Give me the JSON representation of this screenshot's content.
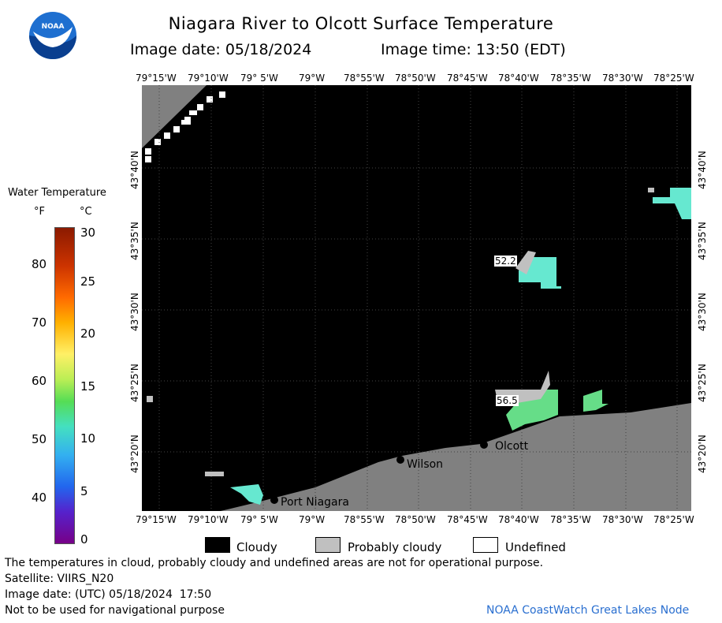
{
  "header": {
    "title": "Niagara River to Olcott Surface Temperature",
    "image_date": "Image date: 05/18/2024",
    "image_time": "Image time: 13:50 (EDT)"
  },
  "logo": {
    "text": "NOAA"
  },
  "axes": {
    "top_lon": [
      "79°15'W",
      "79°10'W",
      "79° 5'W",
      "79°W",
      "78°55'W",
      "78°50'W",
      "78°45'W",
      "78°40'W",
      "78°35'W",
      "78°30'W",
      "78°25'W"
    ],
    "bottom_lon": [
      "79°15'W",
      "79°10'W",
      "79° 5'W",
      "79°W",
      "78°55'W",
      "78°50'W",
      "78°45'W",
      "78°40'W",
      "78°35'W",
      "78°30'W",
      "78°25'W"
    ],
    "lat": [
      "43°40'N",
      "43°35'N",
      "43°30'N",
      "43°25'N",
      "43°20'N"
    ]
  },
  "colorbar": {
    "title": "Water Temperature",
    "unit_f": "°F",
    "unit_c": "°C",
    "f_ticks": [
      "80",
      "70",
      "60",
      "50",
      "40"
    ],
    "c_ticks": [
      "30",
      "25",
      "20",
      "15",
      "10",
      "5",
      "0"
    ]
  },
  "map": {
    "places": [
      {
        "name": "Olcott"
      },
      {
        "name": "Wilson"
      },
      {
        "name": "Port Niagara"
      }
    ],
    "temp_labels": [
      "52.2",
      "56.5"
    ],
    "colors": {
      "cloud": "#000000",
      "land": "#808080",
      "probably_cloudy": "#c0c0c0",
      "water_cool": "#66e8d0",
      "water_warm": "#66dd88"
    }
  },
  "legend": {
    "cloudy": "Cloudy",
    "probably_cloudy": "Probably cloudy",
    "undefined": "Undefined"
  },
  "footer": {
    "disclaimer": "The temperatures in cloud, probably cloudy and undefined areas are not for operational purpose.",
    "satellite": "Satellite: VIIRS_N20",
    "utc_date": "Image date: (UTC) 05/18/2024  17:50",
    "nav_warning": "Not to be used for navigational purpose",
    "credit": "NOAA CoastWatch Great Lakes Node"
  }
}
